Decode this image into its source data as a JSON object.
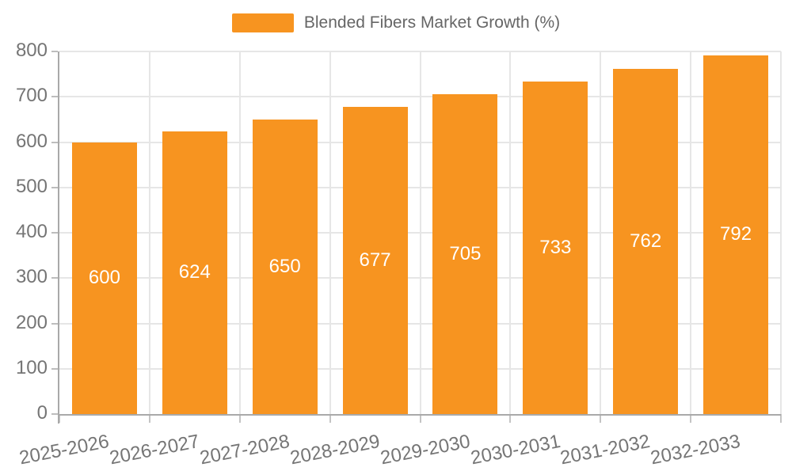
{
  "chart_data": {
    "type": "bar",
    "title": "",
    "legend_label": "Blended Fibers Market Growth (%)",
    "legend_position": "top",
    "categories": [
      "2025-2026",
      "2026-2027",
      "2027-2028",
      "2028-2029",
      "2029-2030",
      "2030-2031",
      "2031-2032",
      "2032-2033"
    ],
    "values": [
      600,
      624,
      650,
      677,
      705,
      733,
      762,
      792
    ],
    "value_labels": [
      "600",
      "624",
      "650",
      "677",
      "705",
      "733",
      "762",
      "792"
    ],
    "xlabel": "",
    "ylabel": "",
    "ylim": [
      0,
      800
    ],
    "yticks": [
      0,
      100,
      200,
      300,
      400,
      500,
      600,
      700,
      800
    ],
    "grid": true,
    "x_label_rotation_deg": -11,
    "colors": {
      "bar": "#f79420",
      "value_label": "#ffffff",
      "axis_line": "#a9a9a9",
      "gridline": "#e6e6e6",
      "tick_text": "#757575",
      "legend_text": "#666666",
      "background": "#ffffff"
    }
  }
}
